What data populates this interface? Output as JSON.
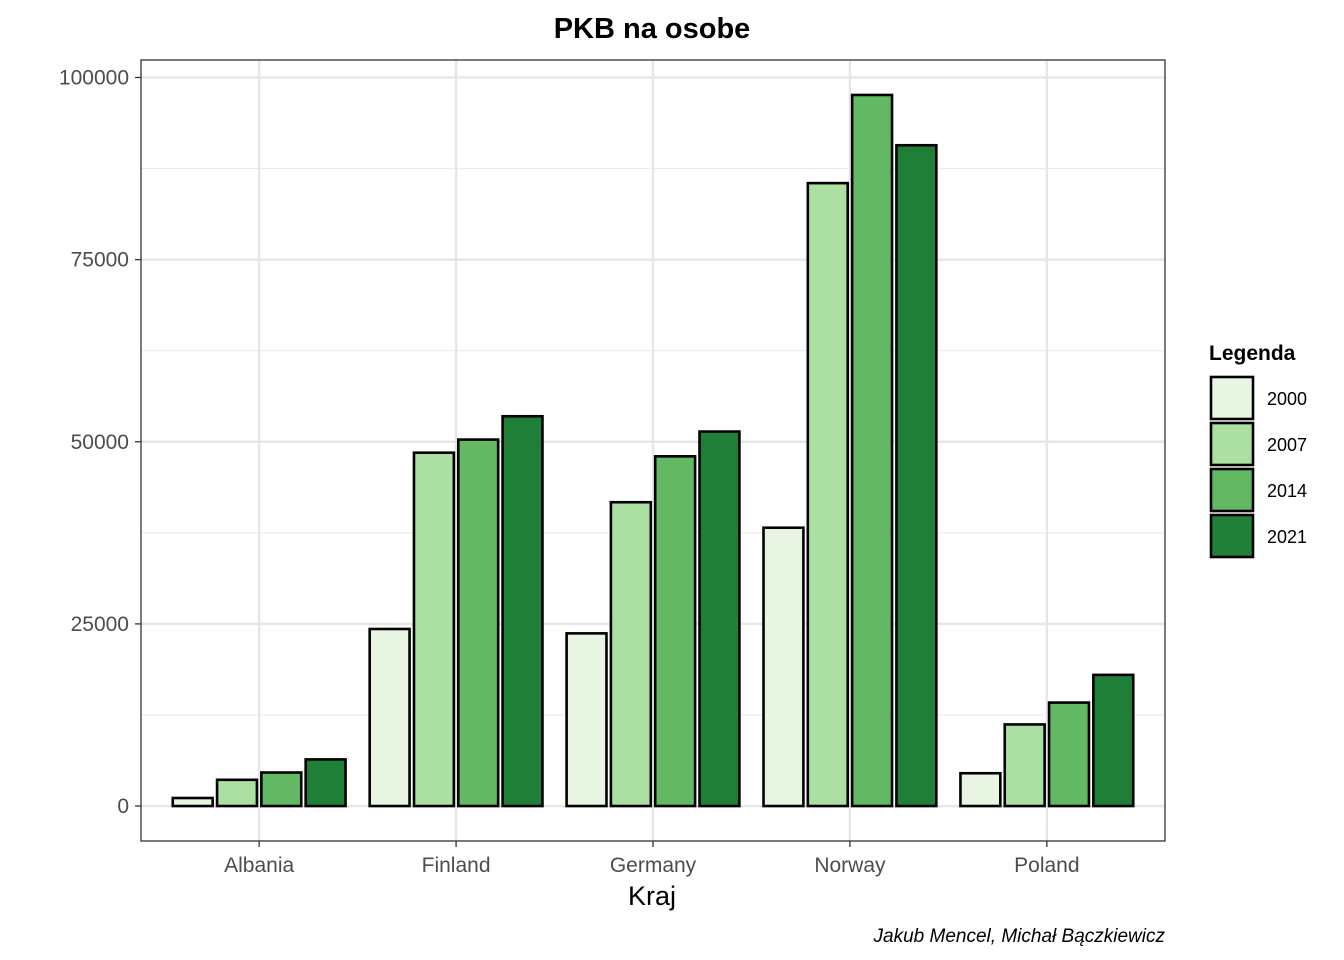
{
  "chart_data": {
    "type": "bar",
    "title": "PKB na osobe",
    "xlabel": "Kraj",
    "ylabel": "",
    "caption": "Jakub Mencel, Michał Bączkiewicz",
    "categories": [
      "Albania",
      "Finland",
      "Germany",
      "Norway",
      "Poland"
    ],
    "ylim": [
      -4800,
      102400
    ],
    "yticks": [
      0,
      25000,
      50000,
      75000,
      100000
    ],
    "ytick_labels": [
      "0",
      "25000",
      "50000",
      "75000",
      "100000"
    ],
    "grid": true,
    "legend": {
      "title": "Legenda",
      "position": "right"
    },
    "series": [
      {
        "name": "2000",
        "color": "#e8f5e3",
        "values": [
          1100,
          24300,
          23700,
          38200,
          4500
        ]
      },
      {
        "name": "2007",
        "color": "#acdfa2",
        "values": [
          3600,
          48500,
          41700,
          85500,
          11200
        ]
      },
      {
        "name": "2014",
        "color": "#63b963",
        "values": [
          4600,
          50300,
          48000,
          97600,
          14200
        ]
      },
      {
        "name": "2021",
        "color": "#207f37",
        "values": [
          6400,
          53500,
          51400,
          90700,
          18000
        ]
      }
    ]
  }
}
